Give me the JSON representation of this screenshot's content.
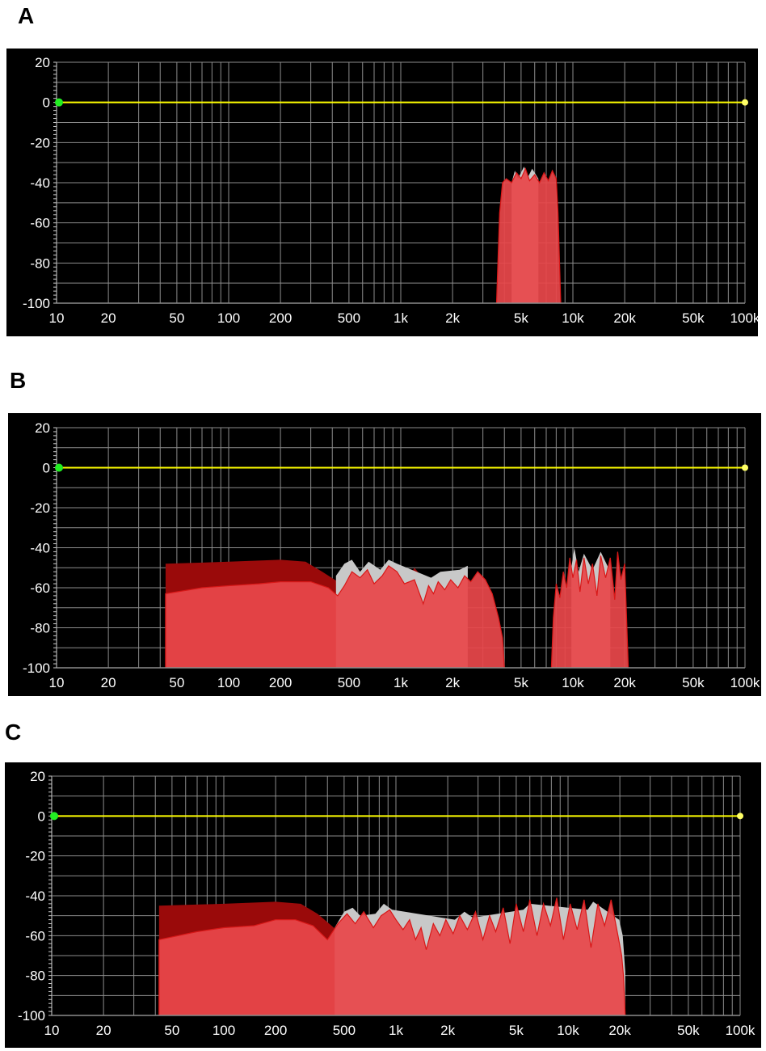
{
  "colors": {
    "background": "#000000",
    "grid": "#8c8c8c",
    "axis_text": "#ffffff",
    "zero_line": "#ffff00",
    "handle_left": "#22ee22",
    "handle_right": "#ffff66",
    "spectrum_fill": "#e8474a",
    "spectrum_dark": "#9a0a0a",
    "spectrum_peak": "#c8c8c8"
  },
  "chart_data": [
    {
      "label": "A",
      "type": "area",
      "x_scale": "log",
      "xlim": [
        10,
        100000
      ],
      "ylim": [
        -100,
        20
      ],
      "grid": true,
      "x_tick_labels": [
        {
          "value": 10,
          "text": "10"
        },
        {
          "value": 20,
          "text": "20"
        },
        {
          "value": 50,
          "text": "50"
        },
        {
          "value": 100,
          "text": "100"
        },
        {
          "value": 200,
          "text": "200"
        },
        {
          "value": 500,
          "text": "500"
        },
        {
          "value": 1000,
          "text": "1k"
        },
        {
          "value": 2000,
          "text": "2k"
        },
        {
          "value": 5000,
          "text": "5k"
        },
        {
          "value": 10000,
          "text": "10k"
        },
        {
          "value": 20000,
          "text": "20k"
        },
        {
          "value": 50000,
          "text": "50k"
        },
        {
          "value": 100000,
          "text": "100k"
        }
      ],
      "y_tick_labels": [
        {
          "value": 20,
          "text": "20"
        },
        {
          "value": 0,
          "text": "0"
        },
        {
          "value": -20,
          "text": "-20"
        },
        {
          "value": -40,
          "text": "-40"
        },
        {
          "value": -60,
          "text": "-60"
        },
        {
          "value": -80,
          "text": "-80"
        },
        {
          "value": -100,
          "text": "-100"
        }
      ],
      "reference_line_db": 0,
      "spectrum": {
        "band_hz": [
          3600,
          8500
        ],
        "envelope": [
          [
            3600,
            -100
          ],
          [
            3750,
            -55
          ],
          [
            3900,
            -40
          ],
          [
            4100,
            -38
          ],
          [
            4400,
            -40
          ],
          [
            4700,
            -35
          ],
          [
            5000,
            -38
          ],
          [
            5300,
            -33
          ],
          [
            5600,
            -39
          ],
          [
            6000,
            -36
          ],
          [
            6400,
            -40
          ],
          [
            6800,
            -35
          ],
          [
            7200,
            -39
          ],
          [
            7600,
            -34
          ],
          [
            8000,
            -38
          ],
          [
            8200,
            -55
          ],
          [
            8500,
            -100
          ]
        ],
        "peak_trace": [
          [
            4400,
            -40
          ],
          [
            4600,
            -34
          ],
          [
            4800,
            -38
          ],
          [
            5200,
            -32
          ],
          [
            5500,
            -37
          ],
          [
            5800,
            -33
          ],
          [
            6300,
            -38
          ]
        ]
      }
    },
    {
      "label": "B",
      "type": "area",
      "x_scale": "log",
      "xlim": [
        10,
        100000
      ],
      "ylim": [
        -100,
        20
      ],
      "grid": true,
      "x_tick_labels": [
        {
          "value": 10,
          "text": "10"
        },
        {
          "value": 20,
          "text": "20"
        },
        {
          "value": 50,
          "text": "50"
        },
        {
          "value": 100,
          "text": "100"
        },
        {
          "value": 200,
          "text": "200"
        },
        {
          "value": 500,
          "text": "500"
        },
        {
          "value": 1000,
          "text": "1k"
        },
        {
          "value": 2000,
          "text": "2k"
        },
        {
          "value": 5000,
          "text": "5k"
        },
        {
          "value": 10000,
          "text": "10k"
        },
        {
          "value": 20000,
          "text": "20k"
        },
        {
          "value": 50000,
          "text": "50k"
        },
        {
          "value": 100000,
          "text": "100k"
        }
      ],
      "y_tick_labels": [
        {
          "value": 20,
          "text": "20"
        },
        {
          "value": 0,
          "text": "0"
        },
        {
          "value": -20,
          "text": "-20"
        },
        {
          "value": -40,
          "text": "-40"
        },
        {
          "value": -60,
          "text": "-60"
        },
        {
          "value": -80,
          "text": "-80"
        },
        {
          "value": -100,
          "text": "-100"
        }
      ],
      "reference_line_db": 0,
      "dark_plateau": [
        [
          43,
          -100
        ],
        [
          43,
          -48
        ],
        [
          100,
          -47
        ],
        [
          200,
          -46
        ],
        [
          280,
          -47
        ],
        [
          350,
          -52
        ],
        [
          450,
          -58
        ],
        [
          700,
          -55
        ],
        [
          900,
          -52
        ],
        [
          1100,
          -56
        ],
        [
          1200,
          -50
        ],
        [
          1400,
          -57
        ]
      ],
      "spectrum_bands": [
        [
          [
            43,
            -100
          ],
          [
            43,
            -63
          ],
          [
            70,
            -60
          ],
          [
            100,
            -59
          ],
          [
            150,
            -58
          ],
          [
            200,
            -57
          ],
          [
            300,
            -57
          ],
          [
            380,
            -60
          ],
          [
            430,
            -64
          ],
          [
            470,
            -59
          ],
          [
            520,
            -52
          ],
          [
            580,
            -55
          ],
          [
            640,
            -51
          ],
          [
            700,
            -58
          ],
          [
            780,
            -54
          ],
          [
            850,
            -49
          ],
          [
            950,
            -52
          ],
          [
            1050,
            -58
          ],
          [
            1200,
            -56
          ],
          [
            1350,
            -68
          ],
          [
            1450,
            -59
          ],
          [
            1550,
            -63
          ],
          [
            1650,
            -57
          ],
          [
            1800,
            -61
          ],
          [
            1950,
            -56
          ],
          [
            2150,
            -60
          ],
          [
            2350,
            -54
          ],
          [
            2550,
            -57
          ],
          [
            2800,
            -52
          ],
          [
            3100,
            -56
          ],
          [
            3400,
            -63
          ],
          [
            3700,
            -75
          ],
          [
            3900,
            -85
          ],
          [
            4000,
            -100
          ]
        ],
        [
          [
            7500,
            -100
          ],
          [
            7700,
            -75
          ],
          [
            8000,
            -58
          ],
          [
            8400,
            -65
          ],
          [
            8800,
            -52
          ],
          [
            9200,
            -60
          ],
          [
            9600,
            -45
          ],
          [
            10000,
            -55
          ],
          [
            10500,
            -46
          ],
          [
            11000,
            -62
          ],
          [
            11600,
            -45
          ],
          [
            12300,
            -58
          ],
          [
            13000,
            -48
          ],
          [
            13800,
            -64
          ],
          [
            14500,
            -44
          ],
          [
            15500,
            -55
          ],
          [
            16500,
            -45
          ],
          [
            17500,
            -66
          ],
          [
            18200,
            -42
          ],
          [
            19000,
            -56
          ],
          [
            20000,
            -48
          ],
          [
            21000,
            -100
          ]
        ]
      ],
      "peak_traces": [
        [
          [
            420,
            -54
          ],
          [
            470,
            -48
          ],
          [
            520,
            -46
          ],
          [
            580,
            -52
          ],
          [
            650,
            -47
          ],
          [
            760,
            -51
          ],
          [
            850,
            -46
          ],
          [
            950,
            -48
          ],
          [
            1500,
            -55
          ],
          [
            1700,
            -52
          ],
          [
            2200,
            -51
          ],
          [
            2450,
            -49
          ]
        ],
        [
          [
            9800,
            -50
          ],
          [
            10200,
            -40
          ],
          [
            10800,
            -52
          ],
          [
            11600,
            -43
          ],
          [
            13000,
            -51
          ],
          [
            14500,
            -42
          ],
          [
            16500,
            -52
          ]
        ]
      ]
    },
    {
      "label": "C",
      "type": "area",
      "x_scale": "log",
      "xlim": [
        10,
        100000
      ],
      "ylim": [
        -100,
        20
      ],
      "grid": true,
      "x_tick_labels": [
        {
          "value": 10,
          "text": "10"
        },
        {
          "value": 20,
          "text": "20"
        },
        {
          "value": 50,
          "text": "50"
        },
        {
          "value": 100,
          "text": "100"
        },
        {
          "value": 200,
          "text": "200"
        },
        {
          "value": 500,
          "text": "500"
        },
        {
          "value": 1000,
          "text": "1k"
        },
        {
          "value": 2000,
          "text": "2k"
        },
        {
          "value": 5000,
          "text": "5k"
        },
        {
          "value": 10000,
          "text": "10k"
        },
        {
          "value": 20000,
          "text": "20k"
        },
        {
          "value": 50000,
          "text": "50k"
        },
        {
          "value": 100000,
          "text": "100k"
        }
      ],
      "y_tick_labels": [
        {
          "value": 20,
          "text": "20"
        },
        {
          "value": 0,
          "text": "0"
        },
        {
          "value": -20,
          "text": "-20"
        },
        {
          "value": -40,
          "text": "-40"
        },
        {
          "value": -60,
          "text": "-60"
        },
        {
          "value": -80,
          "text": "-80"
        },
        {
          "value": -100,
          "text": "-100"
        }
      ],
      "reference_line_db": 0,
      "dark_plateau": [
        [
          42,
          -100
        ],
        [
          42,
          -45
        ],
        [
          100,
          -44
        ],
        [
          200,
          -43
        ],
        [
          280,
          -44
        ],
        [
          350,
          -49
        ],
        [
          450,
          -57
        ],
        [
          700,
          -52
        ],
        [
          900,
          -48
        ],
        [
          1100,
          -53
        ],
        [
          1300,
          -50
        ],
        [
          1600,
          -55
        ]
      ],
      "spectrum_bands": [
        [
          [
            42,
            -100
          ],
          [
            42,
            -62
          ],
          [
            70,
            -58
          ],
          [
            100,
            -56
          ],
          [
            150,
            -55
          ],
          [
            200,
            -52
          ],
          [
            260,
            -52
          ],
          [
            330,
            -55
          ],
          [
            400,
            -62
          ],
          [
            460,
            -54
          ],
          [
            520,
            -49
          ],
          [
            580,
            -54
          ],
          [
            650,
            -48
          ],
          [
            740,
            -56
          ],
          [
            820,
            -50
          ],
          [
            920,
            -47
          ],
          [
            1000,
            -52
          ],
          [
            1100,
            -57
          ],
          [
            1200,
            -52
          ],
          [
            1300,
            -62
          ],
          [
            1400,
            -56
          ],
          [
            1500,
            -67
          ],
          [
            1650,
            -54
          ],
          [
            1800,
            -60
          ],
          [
            1950,
            -52
          ],
          [
            2150,
            -59
          ],
          [
            2350,
            -50
          ],
          [
            2600,
            -57
          ],
          [
            2900,
            -48
          ],
          [
            3200,
            -62
          ],
          [
            3500,
            -50
          ],
          [
            3800,
            -58
          ],
          [
            4200,
            -46
          ],
          [
            4600,
            -64
          ],
          [
            5000,
            -44
          ],
          [
            5500,
            -58
          ],
          [
            6000,
            -42
          ],
          [
            6600,
            -60
          ],
          [
            7200,
            -44
          ],
          [
            7900,
            -55
          ],
          [
            8600,
            -41
          ],
          [
            9400,
            -62
          ],
          [
            10300,
            -44
          ],
          [
            11300,
            -57
          ],
          [
            12400,
            -42
          ],
          [
            13600,
            -66
          ],
          [
            14900,
            -44
          ],
          [
            16300,
            -55
          ],
          [
            17800,
            -42
          ],
          [
            19500,
            -60
          ],
          [
            20500,
            -70
          ],
          [
            21000,
            -80
          ],
          [
            21500,
            -100
          ]
        ]
      ],
      "peak_traces": [
        [
          [
            440,
            -56
          ],
          [
            500,
            -48
          ],
          [
            560,
            -46
          ],
          [
            620,
            -50
          ],
          [
            760,
            -49
          ],
          [
            850,
            -44
          ],
          [
            950,
            -47
          ],
          [
            2200,
            -52
          ],
          [
            2500,
            -48
          ],
          [
            2800,
            -51
          ],
          [
            5500,
            -47
          ],
          [
            6000,
            -44
          ],
          [
            13000,
            -47
          ],
          [
            14000,
            -43
          ],
          [
            19800,
            -52
          ],
          [
            20800,
            -60
          ],
          [
            21500,
            -78
          ]
        ]
      ]
    }
  ]
}
